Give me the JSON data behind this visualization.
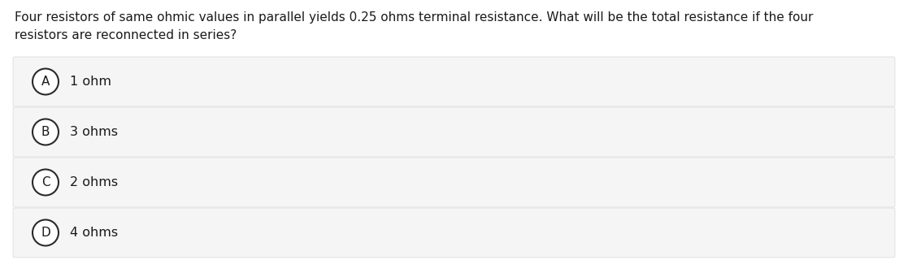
{
  "question_line1": "Four resistors of same ohmic values in parallel yields 0.25 ohms terminal resistance. What will be the total resistance if the four",
  "question_line2": "resistors are reconnected in series?",
  "options": [
    {
      "label": "A",
      "text": "1 ohm"
    },
    {
      "label": "B",
      "text": "3 ohms"
    },
    {
      "label": "C",
      "text": "2 ohms"
    },
    {
      "label": "D",
      "text": "4 ohms"
    }
  ],
  "bg_color": "#ffffff",
  "option_bg_color": "#f5f5f5",
  "option_border_color": "#d8d8d8",
  "circle_color": "#ffffff",
  "circle_edge_color": "#2a2a2a",
  "text_color": "#1a1a1a",
  "question_fontsize": 11.0,
  "option_fontsize": 11.5,
  "label_fontsize": 11.0,
  "fig_width": 11.17,
  "fig_height": 3.41,
  "dpi": 100
}
